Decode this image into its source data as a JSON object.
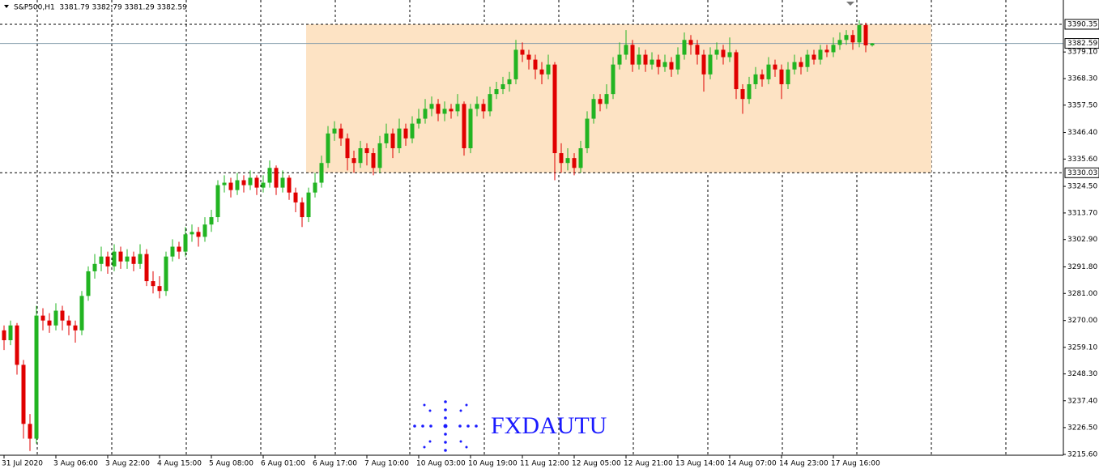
{
  "chart_data": {
    "type": "candlestick",
    "title": "S&P500,H1  3381.79 3382.79 3381.29 3382.59",
    "watermark": "FXDAUTU",
    "up_color": "#22b422",
    "down_color": "#e00000",
    "zone_color": "#fde3c4",
    "categories": [
      "31 Jul 2020",
      null,
      null,
      null,
      null,
      null,
      null,
      null,
      "3 Aug 06:00",
      null,
      null,
      null,
      null,
      null,
      null,
      null,
      "3 Aug 22:00",
      null,
      null,
      null,
      null,
      null,
      null,
      null,
      "4 Aug 15:00",
      null,
      null,
      null,
      null,
      null,
      null,
      null,
      "5 Aug 08:00",
      null,
      null,
      null,
      null,
      null,
      null,
      null,
      "6 Aug 01:00",
      null,
      null,
      null,
      null,
      null,
      null,
      null,
      "6 Aug 17:00",
      null,
      null,
      null,
      null,
      null,
      null,
      null,
      "7 Aug 10:00",
      null,
      null,
      null,
      null,
      null,
      null,
      null,
      "10 Aug 03:00",
      null,
      null,
      null,
      null,
      null,
      null,
      null,
      "10 Aug 19:00",
      null,
      null,
      null,
      null,
      null,
      null,
      null,
      "11 Aug 12:00",
      null,
      null,
      null,
      null,
      null,
      null,
      null,
      "12 Aug 05:00",
      null,
      null,
      null,
      null,
      null,
      null,
      null,
      "12 Aug 21:00",
      null,
      null,
      null,
      null,
      null,
      null,
      null,
      "13 Aug 14:00",
      null,
      null,
      null,
      null,
      null,
      null,
      null,
      "14 Aug 07:00",
      null,
      null,
      null,
      null,
      null,
      null,
      null,
      "14 Aug 23:00",
      null,
      null,
      null,
      null,
      null,
      null,
      null,
      "17 Aug 16:00",
      null,
      null,
      null,
      null,
      null,
      null
    ],
    "open": [
      3266,
      3262,
      3268,
      3252,
      3228,
      3222,
      3272,
      3270,
      3268,
      3274,
      3270,
      3268,
      3266,
      3280,
      3290,
      3293,
      3296,
      3292,
      3298,
      3294,
      3296,
      3293,
      3297,
      3286,
      3284,
      3282,
      3296,
      3300,
      3298,
      3305,
      3306,
      3304,
      3309,
      3312,
      3325,
      3326,
      3323,
      3327,
      3325,
      3328,
      3324,
      3326,
      3332,
      3324,
      3328,
      3322,
      3318,
      3312,
      3322,
      3326,
      3334,
      3346,
      3348,
      3344,
      3336,
      3334,
      3340,
      3338,
      3332,
      3342,
      3346,
      3340,
      3348,
      3344,
      3350,
      3352,
      3356,
      3358,
      3354,
      3356,
      3355,
      3358,
      3340,
      3356,
      3358,
      3355,
      3362,
      3364,
      3366,
      3368,
      3380,
      3378,
      3376,
      3372,
      3370,
      3374,
      3338,
      3334,
      3336,
      3332,
      3340,
      3352,
      3360,
      3358,
      3362,
      3374,
      3378,
      3382,
      3374,
      3378,
      3374,
      3376,
      3373,
      3375,
      3372,
      3378,
      3384,
      3382,
      3378,
      3370,
      3378,
      3380,
      3377,
      3379,
      3364,
      3360,
      3366,
      3370,
      3368,
      3374,
      3372,
      3366,
      3372,
      3375,
      3373,
      3378,
      3376,
      3380,
      3379,
      3382,
      3384,
      3386,
      3383,
      3390,
      3381.79
    ],
    "high": [
      3268,
      3270,
      3269,
      3254,
      3232,
      3276,
      3275,
      3273,
      3277,
      3276,
      3272,
      3270,
      3282,
      3292,
      3297,
      3300,
      3298,
      3301,
      3300,
      3299,
      3298,
      3301,
      3299,
      3290,
      3288,
      3298,
      3303,
      3302,
      3308,
      3309,
      3308,
      3312,
      3315,
      3327,
      3329,
      3328,
      3330,
      3329,
      3331,
      3329,
      3329,
      3335,
      3333,
      3331,
      3329,
      3324,
      3320,
      3324,
      3330,
      3337,
      3349,
      3351,
      3350,
      3346,
      3339,
      3343,
      3342,
      3340,
      3345,
      3350,
      3348,
      3352,
      3350,
      3353,
      3356,
      3360,
      3361,
      3360,
      3359,
      3358,
      3362,
      3359,
      3358,
      3361,
      3360,
      3365,
      3367,
      3369,
      3371,
      3384,
      3383,
      3380,
      3378,
      3375,
      3378,
      3375,
      3342,
      3340,
      3338,
      3343,
      3355,
      3362,
      3362,
      3366,
      3377,
      3383,
      3388,
      3384,
      3381,
      3380,
      3379,
      3378,
      3378,
      3377,
      3381,
      3387,
      3386,
      3384,
      3380,
      3381,
      3383,
      3382,
      3385,
      3380,
      3366,
      3369,
      3373,
      3372,
      3377,
      3376,
      3374,
      3375,
      3378,
      3377,
      3380,
      3380,
      3382,
      3382,
      3385,
      3387,
      3388,
      3388,
      3392,
      3391,
      3382.79
    ],
    "low": [
      3258,
      3260,
      3248,
      3222,
      3217,
      3220,
      3266,
      3265,
      3266,
      3266,
      3264,
      3261,
      3264,
      3278,
      3287,
      3290,
      3289,
      3290,
      3291,
      3291,
      3290,
      3291,
      3284,
      3281,
      3279,
      3280,
      3294,
      3295,
      3296,
      3302,
      3300,
      3302,
      3306,
      3310,
      3322,
      3320,
      3321,
      3322,
      3323,
      3321,
      3322,
      3324,
      3321,
      3322,
      3319,
      3314,
      3308,
      3310,
      3320,
      3324,
      3332,
      3343,
      3341,
      3331,
      3330,
      3332,
      3333,
      3329,
      3330,
      3340,
      3336,
      3338,
      3341,
      3342,
      3348,
      3350,
      3353,
      3351,
      3351,
      3352,
      3353,
      3337,
      3338,
      3353,
      3352,
      3353,
      3360,
      3362,
      3363,
      3366,
      3375,
      3372,
      3368,
      3366,
      3368,
      3327,
      3330,
      3331,
      3329,
      3330,
      3338,
      3350,
      3355,
      3356,
      3360,
      3372,
      3376,
      3371,
      3372,
      3371,
      3372,
      3370,
      3371,
      3369,
      3370,
      3376,
      3378,
      3374,
      3363,
      3368,
      3376,
      3374,
      3375,
      3360,
      3354,
      3358,
      3364,
      3365,
      3366,
      3369,
      3360,
      3364,
      3370,
      3370,
      3371,
      3374,
      3374,
      3377,
      3377,
      3380,
      3382,
      3380,
      3381,
      3379,
      3381.29
    ],
    "close": [
      3262,
      3268,
      3252,
      3228,
      3222,
      3272,
      3270,
      3268,
      3274,
      3270,
      3268,
      3266,
      3280,
      3290,
      3293,
      3296,
      3292,
      3298,
      3294,
      3296,
      3293,
      3297,
      3286,
      3284,
      3282,
      3296,
      3300,
      3298,
      3305,
      3306,
      3304,
      3309,
      3312,
      3325,
      3326,
      3323,
      3327,
      3325,
      3328,
      3324,
      3326,
      3332,
      3324,
      3328,
      3322,
      3318,
      3312,
      3322,
      3326,
      3334,
      3346,
      3348,
      3344,
      3336,
      3334,
      3340,
      3338,
      3332,
      3342,
      3346,
      3340,
      3348,
      3344,
      3350,
      3352,
      3356,
      3358,
      3354,
      3356,
      3355,
      3358,
      3340,
      3356,
      3358,
      3355,
      3362,
      3364,
      3366,
      3368,
      3380,
      3378,
      3376,
      3372,
      3370,
      3374,
      3338,
      3334,
      3336,
      3332,
      3340,
      3352,
      3360,
      3358,
      3362,
      3374,
      3378,
      3382,
      3374,
      3378,
      3374,
      3376,
      3373,
      3375,
      3372,
      3378,
      3384,
      3382,
      3378,
      3370,
      3378,
      3380,
      3377,
      3379,
      3364,
      3360,
      3366,
      3370,
      3368,
      3374,
      3372,
      3366,
      3372,
      3375,
      3373,
      3378,
      3376,
      3380,
      3379,
      3382,
      3384,
      3386,
      3383,
      3390,
      3381.79,
      3382.59
    ],
    "ylim": [
      3215.27,
      3400.22
    ],
    "yticks": [
      {
        "value": 3215.6,
        "label": "3215.60"
      },
      {
        "value": 3226.5,
        "label": "3226.50"
      },
      {
        "value": 3237.4,
        "label": "3237.40"
      },
      {
        "value": 3248.3,
        "label": "3248.30"
      },
      {
        "value": 3259.1,
        "label": "3259.10"
      },
      {
        "value": 3270.0,
        "label": "3270.00"
      },
      {
        "value": 3281.0,
        "label": "3281.00"
      },
      {
        "value": 3291.8,
        "label": "3291.80"
      },
      {
        "value": 3302.9,
        "label": "3302.90"
      },
      {
        "value": 3313.7,
        "label": "3313.70"
      },
      {
        "value": 3324.5,
        "label": "3324.50"
      },
      {
        "value": 3335.6,
        "label": "3335.60"
      },
      {
        "value": 3346.4,
        "label": "3346.40"
      },
      {
        "value": 3357.5,
        "label": "3357.50"
      },
      {
        "value": 3368.3,
        "label": "3368.30"
      },
      {
        "value": 3379.1,
        "label": "3379.10"
      }
    ],
    "levels": [
      {
        "value": 3390.35,
        "label": "3390.35",
        "style": "dashed"
      },
      {
        "value": 3382.59,
        "label": "3382.59",
        "style": "solid"
      },
      {
        "value": 3330.03,
        "label": "3330.03",
        "style": "dashed"
      }
    ]
  }
}
